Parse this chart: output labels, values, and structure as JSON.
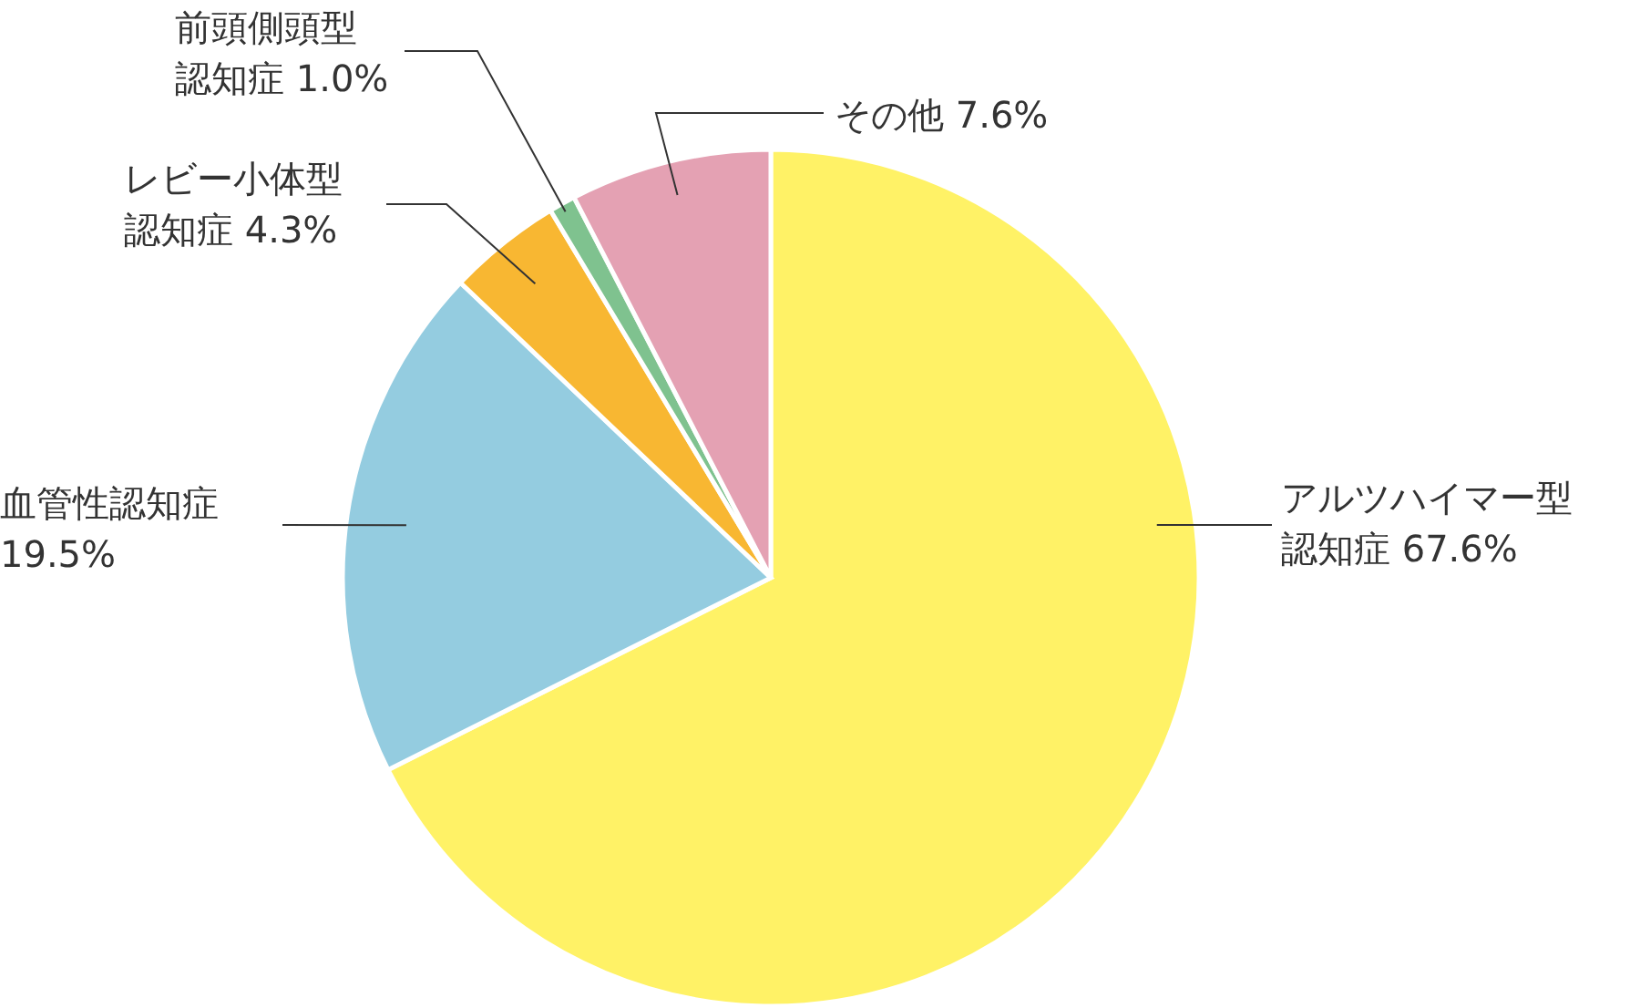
{
  "chart_data": {
    "type": "pie",
    "categories": [
      "アルツハイマー型認知症",
      "血管性認知症",
      "レビー小体型認知症",
      "前頭側頭型認知症",
      "その他"
    ],
    "values": [
      67.6,
      19.5,
      4.3,
      1.0,
      7.6
    ],
    "value_labels": [
      "67.6%",
      "19.5%",
      "4.3%",
      "1.0%",
      "7.6%"
    ],
    "colors": [
      "#fff266",
      "#94cce0",
      "#f8b732",
      "#7fc28f",
      "#e4a1b3"
    ]
  }
}
